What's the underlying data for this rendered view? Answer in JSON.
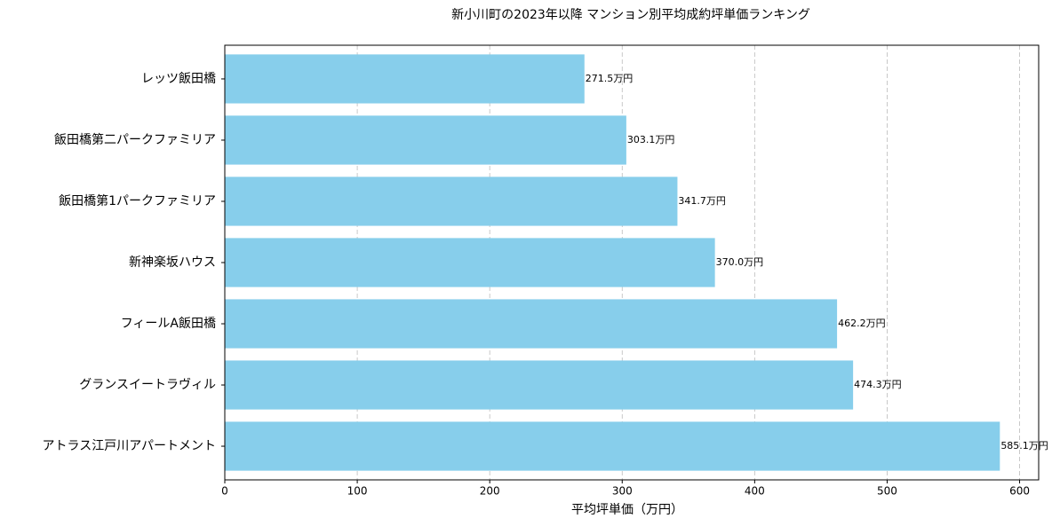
{
  "chart_data": {
    "type": "barh",
    "title": "新小川町の2023年以降 マンション別平均成約坪単価ランキング",
    "x_label": "平均坪単価（万円）",
    "categories": [
      "レッツ飯田橋",
      "飯田橋第二パークファミリア",
      "飯田橋第1パークファミリア",
      "新神楽坂ハウス",
      "フィールA飯田橋",
      "グランスイートラヴィル",
      "アトラス江戸川アパートメント"
    ],
    "values": [
      271.5,
      303.1,
      341.7,
      370.0,
      462.2,
      474.3,
      585.1
    ],
    "value_labels": [
      "271.5万円",
      "303.1万円",
      "341.7万円",
      "370.0万円",
      "462.2万円",
      "474.3万円",
      "585.1万円"
    ],
    "color": "#87ceeb",
    "xlim": [
      0,
      614.4
    ],
    "xticks": [
      0,
      100,
      200,
      300,
      400,
      500,
      600
    ],
    "grid": true
  }
}
